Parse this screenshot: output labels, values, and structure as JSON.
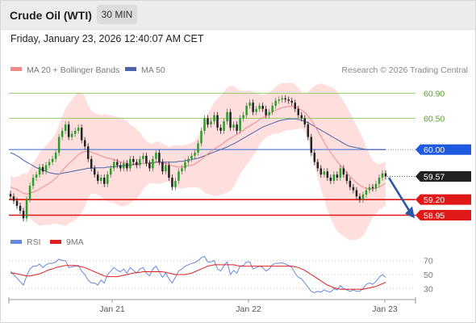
{
  "header": {
    "title": "Crude Oil (WTI)",
    "timeframe": "30 MIN",
    "datetime": "Friday, January 23, 2026 12:40:07 AM CET"
  },
  "legend": {
    "ma20": "MA 20 + Bollinger Bands",
    "ma50": "MA 50",
    "credit": "Research © 2026 Trading Central",
    "rsi": "RSI",
    "rsi_ma": "9MA"
  },
  "colors": {
    "ma20": "#f08a8a",
    "ma50": "#4a62a8",
    "bands": "#ffd8d8",
    "bull": "#2c9c2c",
    "bear": "#222222",
    "resistance": "#9acd6e",
    "pivot": "#4a7ae0",
    "support": "#e01818",
    "last": "#222222",
    "arrow": "#2a58a8",
    "rsi": "#6688dd",
    "rsi_ma": "#e02020"
  },
  "chart_data": [
    {
      "type": "candlestick",
      "title": "Crude Oil (WTI)",
      "timeframe": "30 MIN",
      "ylim": [
        58.75,
        61.1
      ],
      "x_ticks": [
        "Jan 21",
        "Jan 22",
        "Jan 23"
      ],
      "levels": [
        {
          "label": "60.90",
          "value": 60.9,
          "kind": "resistance"
        },
        {
          "label": "60.50",
          "value": 60.5,
          "kind": "resistance"
        },
        {
          "label": "60.00",
          "value": 60.0,
          "kind": "pivot"
        },
        {
          "label": "59.57",
          "value": 59.57,
          "kind": "last"
        },
        {
          "label": "59.20",
          "value": 59.2,
          "kind": "support"
        },
        {
          "label": "58.95",
          "value": 58.95,
          "kind": "support"
        }
      ],
      "forecast_arrow": {
        "from": 59.55,
        "to": 58.95,
        "direction": "down"
      },
      "close": [
        59.25,
        59.18,
        59.1,
        59.02,
        58.9,
        59.2,
        59.42,
        59.55,
        59.6,
        59.72,
        59.65,
        59.75,
        59.8,
        59.85,
        59.95,
        60.2,
        60.3,
        60.4,
        60.2,
        60.25,
        60.3,
        60.35,
        60.15,
        60.05,
        59.85,
        59.7,
        59.6,
        59.5,
        59.55,
        59.45,
        59.6,
        59.7,
        59.8,
        59.75,
        59.7,
        59.78,
        59.7,
        59.85,
        59.8,
        59.75,
        59.85,
        59.9,
        59.78,
        59.7,
        59.85,
        59.95,
        59.8,
        59.65,
        59.75,
        59.55,
        59.4,
        59.5,
        59.65,
        59.7,
        59.8,
        59.85,
        59.9,
        59.95,
        60.1,
        60.3,
        60.5,
        60.4,
        60.45,
        60.55,
        60.35,
        60.3,
        60.45,
        60.6,
        60.35,
        60.4,
        60.3,
        60.5,
        60.55,
        60.7,
        60.75,
        60.6,
        60.65,
        60.7,
        60.65,
        60.55,
        60.6,
        60.7,
        60.78,
        60.8,
        60.82,
        60.8,
        60.78,
        60.75,
        60.65,
        60.55,
        60.5,
        60.4,
        60.2,
        59.95,
        59.8,
        59.7,
        59.6,
        59.65,
        59.55,
        59.5,
        59.6,
        59.55,
        59.7,
        59.6,
        59.5,
        59.4,
        59.35,
        59.25,
        59.2,
        59.28,
        59.35,
        59.4,
        59.38,
        59.45,
        59.55,
        59.62,
        59.57
      ],
      "ma20": [
        59.4,
        59.38,
        59.36,
        59.33,
        59.3,
        59.29,
        59.3,
        59.32,
        59.34,
        59.37,
        59.4,
        59.43,
        59.46,
        59.5,
        59.54,
        59.6,
        59.66,
        59.72,
        59.77,
        59.82,
        59.87,
        59.92,
        59.95,
        59.97,
        59.97,
        59.96,
        59.94,
        59.92,
        59.9,
        59.88,
        59.86,
        59.85,
        59.84,
        59.82,
        59.8,
        59.79,
        59.78,
        59.77,
        59.77,
        59.77,
        59.78,
        59.78,
        59.78,
        59.78,
        59.78,
        59.79,
        59.79,
        59.78,
        59.78,
        59.76,
        59.74,
        59.73,
        59.72,
        59.72,
        59.73,
        59.74,
        59.75,
        59.77,
        59.8,
        59.84,
        59.89,
        59.93,
        59.97,
        60.01,
        60.04,
        60.07,
        60.11,
        60.15,
        60.18,
        60.21,
        60.24,
        60.28,
        60.31,
        60.35,
        60.38,
        60.41,
        60.44,
        60.48,
        60.51,
        60.54,
        60.57,
        60.6,
        60.63,
        60.65,
        60.67,
        60.68,
        60.69,
        60.69,
        60.68,
        60.66,
        60.63,
        60.59,
        60.54,
        60.47,
        60.39,
        60.3,
        60.21,
        60.12,
        60.03,
        59.95,
        59.88,
        59.81,
        59.75,
        59.69,
        59.63,
        59.57,
        59.52,
        59.47,
        59.43,
        59.4,
        59.38,
        59.37,
        59.37,
        59.38,
        59.4,
        59.43,
        59.46
      ],
      "ma50": [
        59.95,
        59.93,
        59.9,
        59.87,
        59.83,
        59.8,
        59.77,
        59.74,
        59.71,
        59.69,
        59.67,
        59.65,
        59.63,
        59.62,
        59.61,
        59.61,
        59.62,
        59.63,
        59.64,
        59.65,
        59.66,
        59.67,
        59.68,
        59.69,
        59.7,
        59.7,
        59.71,
        59.71,
        59.71,
        59.71,
        59.72,
        59.72,
        59.73,
        59.73,
        59.74,
        59.74,
        59.75,
        59.75,
        59.76,
        59.76,
        59.77,
        59.78,
        59.78,
        59.79,
        59.79,
        59.8,
        59.8,
        59.8,
        59.8,
        59.8,
        59.8,
        59.8,
        59.81,
        59.81,
        59.82,
        59.83,
        59.84,
        59.85,
        59.86,
        59.88,
        59.9,
        59.92,
        59.94,
        59.96,
        59.98,
        60.0,
        60.02,
        60.04,
        60.07,
        60.09,
        60.12,
        60.15,
        60.18,
        60.21,
        60.24,
        60.27,
        60.3,
        60.33,
        60.36,
        60.38,
        60.4,
        60.42,
        60.44,
        60.46,
        60.47,
        60.48,
        60.49,
        60.49,
        60.49,
        60.48,
        60.47,
        60.45,
        60.43,
        60.4,
        60.37,
        60.34,
        60.31,
        60.28,
        60.25,
        60.22,
        60.19,
        60.16,
        60.13,
        60.1,
        60.07,
        60.05,
        60.04,
        60.03,
        60.02,
        60.01,
        60.0,
        60.0,
        60.0,
        60.0,
        60.0,
        60.0,
        60.0
      ]
    },
    {
      "type": "line",
      "title": "RSI",
      "ylim": [
        20,
        80
      ],
      "y_ticks": [
        "70",
        "50",
        "30"
      ],
      "series": [
        {
          "name": "RSI",
          "values": [
            55,
            50,
            45,
            40,
            35,
            48,
            58,
            62,
            62,
            65,
            60,
            64,
            66,
            66,
            68,
            72,
            70,
            70,
            60,
            61,
            62,
            63,
            55,
            50,
            42,
            38,
            38,
            35,
            42,
            38,
            50,
            55,
            60,
            56,
            54,
            58,
            52,
            60,
            56,
            52,
            58,
            60,
            52,
            48,
            58,
            62,
            54,
            46,
            52,
            44,
            38,
            46,
            55,
            58,
            62,
            64,
            66,
            67,
            70,
            74,
            76,
            68,
            68,
            70,
            58,
            55,
            63,
            68,
            50,
            56,
            52,
            62,
            63,
            68,
            68,
            58,
            60,
            62,
            60,
            55,
            58,
            64,
            66,
            66,
            67,
            65,
            63,
            60,
            52,
            46,
            44,
            38,
            32,
            26,
            24,
            26,
            25,
            28,
            26,
            25,
            30,
            28,
            34,
            30,
            28,
            26,
            28,
            26,
            26,
            30,
            36,
            38,
            36,
            40,
            46,
            50,
            46
          ]
        },
        {
          "name": "9MA",
          "values": [
            52,
            52,
            51,
            50,
            49,
            48,
            48,
            49,
            50,
            51,
            53,
            55,
            57,
            58,
            60,
            61,
            62,
            63,
            63,
            63,
            63,
            62,
            61,
            60,
            58,
            56,
            54,
            52,
            50,
            48,
            47,
            47,
            47,
            47,
            48,
            49,
            50,
            51,
            52,
            53,
            53,
            54,
            54,
            54,
            54,
            54,
            54,
            54,
            53,
            52,
            51,
            50,
            50,
            50,
            50,
            51,
            52,
            54,
            56,
            58,
            60,
            62,
            63,
            64,
            64,
            64,
            64,
            64,
            64,
            64,
            63,
            62,
            62,
            62,
            62,
            62,
            62,
            62,
            62,
            62,
            62,
            62,
            62,
            62,
            62,
            62,
            62,
            62,
            61,
            60,
            58,
            56,
            53,
            50,
            47,
            44,
            41,
            38,
            35,
            33,
            31,
            30,
            29,
            29,
            29,
            29,
            29,
            29,
            29,
            29,
            30,
            31,
            32,
            33,
            35,
            37,
            39
          ]
        }
      ]
    }
  ]
}
